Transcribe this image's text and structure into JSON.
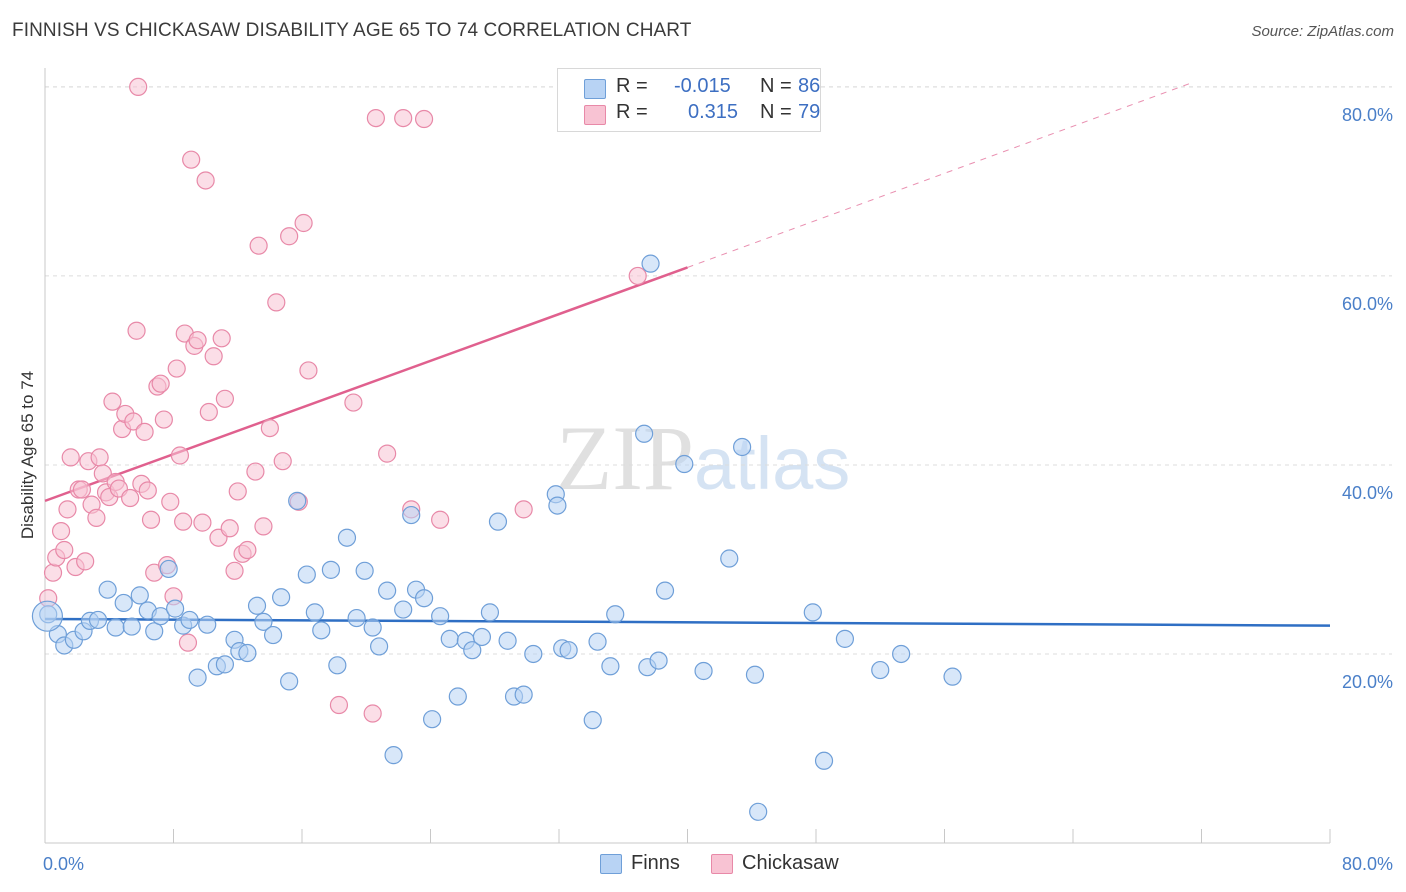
{
  "title": "FINNISH VS CHICKASAW DISABILITY AGE 65 TO 74 CORRELATION CHART",
  "source": "Source: ZipAtlas.com",
  "watermark": {
    "part1": "ZIP",
    "part2": "atlas"
  },
  "colors": {
    "finns_fill": "#b8d3f4",
    "finns_stroke": "#6f9fd8",
    "finns_line": "#2f6fc4",
    "chick_fill": "#f8c3d3",
    "chick_stroke": "#e889a8",
    "chick_line": "#e0608e",
    "axis_label": "#4a7fc8"
  },
  "legend": {
    "rows": [
      {
        "r_label": "R =",
        "r_value": "-0.015",
        "n_label": "N =",
        "n_value": "86"
      },
      {
        "r_label": "R =",
        "r_value": "0.315",
        "n_label": "N =",
        "n_value": "79"
      }
    ]
  },
  "bottom_legend": [
    "Finns",
    "Chickasaw"
  ],
  "chart_data": {
    "type": "scatter",
    "ylabel": "Disability Age 65 to 74",
    "xlim": [
      0,
      80
    ],
    "ylim": [
      0,
      82
    ],
    "x_tick_labels": [
      "0.0%",
      "80.0%"
    ],
    "y_ticks": [
      20,
      40,
      60,
      80
    ],
    "y_tick_labels": [
      "20.0%",
      "40.0%",
      "60.0%",
      "80.0%"
    ],
    "grid": "horizontal dashed",
    "legend_position": "top-center",
    "series": [
      {
        "name": "Finns",
        "points": [
          [
            0.2,
            24.2
          ],
          [
            0.8,
            22.1
          ],
          [
            1.2,
            20.9
          ],
          [
            1.8,
            21.5
          ],
          [
            2.4,
            22.4
          ],
          [
            2.8,
            23.5
          ],
          [
            3.3,
            23.6
          ],
          [
            3.9,
            26.8
          ],
          [
            4.4,
            22.8
          ],
          [
            4.9,
            25.4
          ],
          [
            5.4,
            22.9
          ],
          [
            5.9,
            26.2
          ],
          [
            6.4,
            24.6
          ],
          [
            6.8,
            22.4
          ],
          [
            7.2,
            24.0
          ],
          [
            7.7,
            29.0
          ],
          [
            8.1,
            24.8
          ],
          [
            8.6,
            23.0
          ],
          [
            9.0,
            23.6
          ],
          [
            9.5,
            17.5
          ],
          [
            10.1,
            23.1
          ],
          [
            10.7,
            18.7
          ],
          [
            11.2,
            18.9
          ],
          [
            11.8,
            21.5
          ],
          [
            12.1,
            20.3
          ],
          [
            12.6,
            20.1
          ],
          [
            13.2,
            25.1
          ],
          [
            13.6,
            23.4
          ],
          [
            14.2,
            22.0
          ],
          [
            14.7,
            26.0
          ],
          [
            15.2,
            17.1
          ],
          [
            15.7,
            36.2
          ],
          [
            16.3,
            28.4
          ],
          [
            16.8,
            24.4
          ],
          [
            17.2,
            22.5
          ],
          [
            17.8,
            28.9
          ],
          [
            18.2,
            18.8
          ],
          [
            18.8,
            32.3
          ],
          [
            19.4,
            23.8
          ],
          [
            19.9,
            28.8
          ],
          [
            20.4,
            22.8
          ],
          [
            20.8,
            20.8
          ],
          [
            21.3,
            26.7
          ],
          [
            21.7,
            9.3
          ],
          [
            22.3,
            24.7
          ],
          [
            22.8,
            34.7
          ],
          [
            23.1,
            26.8
          ],
          [
            23.6,
            25.9
          ],
          [
            24.1,
            13.1
          ],
          [
            24.6,
            24.0
          ],
          [
            25.2,
            21.6
          ],
          [
            25.7,
            15.5
          ],
          [
            26.2,
            21.4
          ],
          [
            26.6,
            20.4
          ],
          [
            27.2,
            21.8
          ],
          [
            27.7,
            24.4
          ],
          [
            28.2,
            34.0
          ],
          [
            28.8,
            21.4
          ],
          [
            29.2,
            15.5
          ],
          [
            29.8,
            15.7
          ],
          [
            30.4,
            20.0
          ],
          [
            31.8,
            36.9
          ],
          [
            31.9,
            35.7
          ],
          [
            32.2,
            20.6
          ],
          [
            32.6,
            20.4
          ],
          [
            34.1,
            13.0
          ],
          [
            34.4,
            21.3
          ],
          [
            35.2,
            18.7
          ],
          [
            35.5,
            24.2
          ],
          [
            37.3,
            43.3
          ],
          [
            37.5,
            18.6
          ],
          [
            37.7,
            61.3
          ],
          [
            38.2,
            19.3
          ],
          [
            38.6,
            26.7
          ],
          [
            39.8,
            40.1
          ],
          [
            41.0,
            18.2
          ],
          [
            42.6,
            30.1
          ],
          [
            43.4,
            41.9
          ],
          [
            44.2,
            17.8
          ],
          [
            47.8,
            24.4
          ],
          [
            48.5,
            8.7
          ],
          [
            49.8,
            21.6
          ],
          [
            52.0,
            18.3
          ],
          [
            53.3,
            20.0
          ],
          [
            56.5,
            17.6
          ],
          [
            44.4,
            3.3
          ]
        ],
        "trend": {
          "x": [
            0,
            80
          ],
          "y": [
            23.7,
            23.0
          ]
        }
      },
      {
        "name": "Chickasaw",
        "points": [
          [
            0.2,
            25.9
          ],
          [
            0.5,
            28.6
          ],
          [
            0.7,
            30.2
          ],
          [
            1.0,
            33.0
          ],
          [
            1.2,
            31.0
          ],
          [
            1.4,
            35.3
          ],
          [
            1.6,
            40.8
          ],
          [
            1.9,
            29.2
          ],
          [
            2.1,
            37.4
          ],
          [
            2.3,
            37.4
          ],
          [
            2.5,
            29.8
          ],
          [
            2.7,
            40.4
          ],
          [
            2.9,
            35.8
          ],
          [
            3.2,
            34.4
          ],
          [
            3.4,
            40.8
          ],
          [
            3.6,
            39.1
          ],
          [
            3.8,
            37.1
          ],
          [
            4.0,
            36.6
          ],
          [
            4.2,
            46.7
          ],
          [
            4.4,
            38.2
          ],
          [
            4.6,
            37.5
          ],
          [
            4.8,
            43.8
          ],
          [
            5.0,
            45.4
          ],
          [
            5.3,
            36.5
          ],
          [
            5.5,
            44.6
          ],
          [
            5.7,
            54.2
          ],
          [
            6.0,
            38.0
          ],
          [
            6.2,
            43.5
          ],
          [
            6.4,
            37.3
          ],
          [
            6.6,
            34.2
          ],
          [
            6.8,
            28.6
          ],
          [
            7.0,
            48.3
          ],
          [
            7.2,
            48.6
          ],
          [
            7.4,
            44.8
          ],
          [
            7.6,
            29.4
          ],
          [
            7.8,
            36.1
          ],
          [
            8.0,
            26.1
          ],
          [
            8.2,
            50.2
          ],
          [
            8.4,
            41.0
          ],
          [
            8.6,
            34.0
          ],
          [
            8.7,
            53.9
          ],
          [
            8.9,
            21.2
          ],
          [
            9.1,
            72.3
          ],
          [
            9.3,
            52.6
          ],
          [
            9.5,
            53.2
          ],
          [
            9.8,
            33.9
          ],
          [
            10.0,
            70.1
          ],
          [
            10.2,
            45.6
          ],
          [
            10.5,
            51.5
          ],
          [
            10.8,
            32.3
          ],
          [
            11.0,
            53.4
          ],
          [
            11.2,
            47.0
          ],
          [
            11.5,
            33.3
          ],
          [
            11.8,
            28.8
          ],
          [
            12.0,
            37.2
          ],
          [
            12.3,
            30.6
          ],
          [
            12.6,
            31.0
          ],
          [
            13.1,
            39.3
          ],
          [
            13.3,
            63.2
          ],
          [
            13.6,
            33.5
          ],
          [
            14.0,
            43.9
          ],
          [
            14.4,
            57.2
          ],
          [
            14.8,
            40.4
          ],
          [
            15.2,
            64.2
          ],
          [
            15.8,
            36.1
          ],
          [
            16.1,
            65.6
          ],
          [
            16.4,
            50.0
          ],
          [
            18.3,
            14.6
          ],
          [
            19.2,
            46.6
          ],
          [
            20.4,
            13.7
          ],
          [
            20.6,
            76.7
          ],
          [
            21.3,
            41.2
          ],
          [
            22.3,
            76.7
          ],
          [
            22.8,
            35.3
          ],
          [
            23.6,
            76.6
          ],
          [
            24.6,
            34.2
          ],
          [
            29.8,
            35.3
          ],
          [
            36.9,
            60.0
          ],
          [
            5.8,
            80.0
          ]
        ],
        "trend": {
          "x": [
            0,
            40
          ],
          "y": [
            36.2,
            60.9
          ]
        },
        "trend_extension": {
          "x": [
            40,
            71.5
          ],
          "y": [
            60.9,
            80.5
          ]
        }
      }
    ]
  }
}
